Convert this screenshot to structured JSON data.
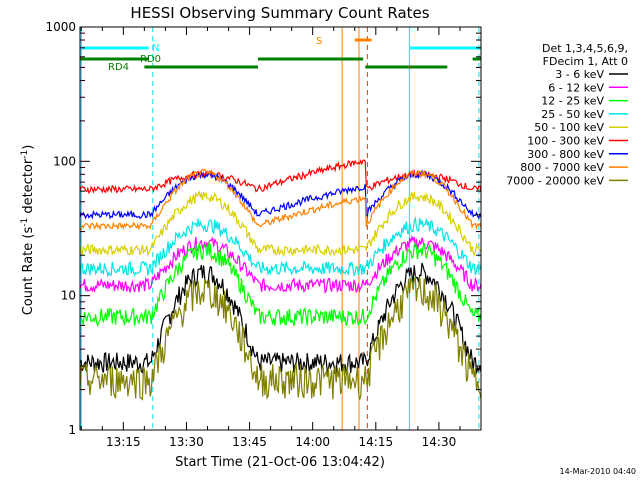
{
  "chart_data": {
    "type": "line",
    "title": "HESSI Observing Summary Count Rates",
    "xlabel": "Start Time (21-Oct-06 13:04:42)",
    "ylabel_main": "Count Rate (s",
    "ylabel_sup1": "-1",
    "ylabel_mid": " detector",
    "ylabel_sup2": "-1",
    "ylabel_end": ")",
    "footer": "14-Mar-2010 04:40",
    "x_domain_min": [
      13,
      4.7
    ],
    "x_domain_max": [
      14,
      40
    ],
    "x_ticks": [
      "13:15",
      "13:30",
      "13:45",
      "14:00",
      "14:15",
      "14:30"
    ],
    "y_scale": "log",
    "ylim": [
      1,
      1000
    ],
    "y_ticks": [
      "1",
      "10",
      "100",
      "1000"
    ],
    "grid": false,
    "legend_placement": "right",
    "legend_header": [
      "Det 1,3,4,5,6,9,",
      "FDecim 1, Att 0"
    ],
    "series": [
      {
        "name": "3 - 6 keV",
        "color": "#000000",
        "night": 3.2,
        "day": 15,
        "amp": 0.06
      },
      {
        "name": "6 - 12 keV",
        "color": "#ff00ff",
        "night": 12,
        "day": 25,
        "amp": 0.04
      },
      {
        "name": "12 - 25 keV",
        "color": "#00ff00",
        "night": 7,
        "day": 22,
        "amp": 0.05
      },
      {
        "name": "25 - 50 keV",
        "color": "#00e5e5",
        "night": 16,
        "day": 34,
        "amp": 0.04
      },
      {
        "name": "50 - 100 keV",
        "color": "#d8d000",
        "night": 22,
        "day": 55,
        "amp": 0.03
      },
      {
        "name": "100 - 300 keV",
        "color": "#ff0000",
        "night": 62,
        "day": 80,
        "amp": 0.02
      },
      {
        "name": "300 - 800 keV",
        "color": "#0000ff",
        "night": 40,
        "day": 80,
        "amp": 0.02
      },
      {
        "name": "800 - 7000 keV",
        "color": "#ff8000",
        "night": 33,
        "day": 82,
        "amp": 0.02
      },
      {
        "name": "7000 - 20000 keV",
        "color": "#808000",
        "night": 2.4,
        "day": 11,
        "amp": 0.1
      }
    ],
    "flag_labels": {
      "n": "N",
      "rd0": "RD0",
      "rd4": "RD4",
      "s": "S"
    },
    "colors": {
      "saa": "#00ffff",
      "night": "#00e5e5",
      "rd": "#008000",
      "flare": "#ff8000",
      "flare_line": "#ff3300"
    },
    "night_intervals": [
      [
        [
          13,
          4.7
        ],
        [
          13,
          21
        ]
      ],
      [
        [
          14,
          23
        ],
        [
          14,
          40
        ]
      ]
    ],
    "rd0_intervals": [
      [
        [
          13,
          4.7
        ],
        [
          13,
          21
        ]
      ],
      [
        [
          13,
          47
        ],
        [
          14,
          12
        ]
      ],
      [
        [
          14,
          38
        ],
        [
          14,
          40
        ]
      ]
    ],
    "rd4_intervals": [
      [
        [
          13,
          20
        ],
        [
          13,
          47
        ]
      ],
      [
        [
          14,
          12.5
        ],
        [
          14,
          32
        ]
      ]
    ],
    "saa_lines": [
      [
        13,
        5
      ],
      [
        14,
        23
      ]
    ],
    "night_lines": [
      [
        13,
        22
      ],
      [
        14,
        39.5
      ]
    ],
    "flare_lines": [
      [
        14,
        7
      ],
      [
        14,
        11
      ]
    ],
    "flare_end_line": [
      14,
      13
    ],
    "flare_interval": [
      [
        14,
        10
      ],
      [
        14,
        14
      ]
    ]
  }
}
